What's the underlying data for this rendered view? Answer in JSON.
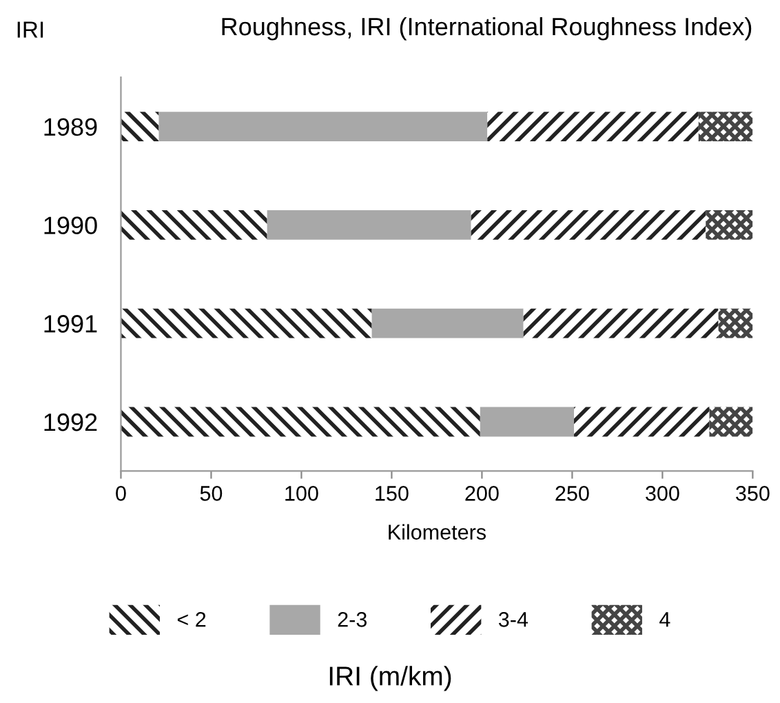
{
  "chart_data": {
    "type": "bar",
    "orientation": "horizontal",
    "stacked": true,
    "title": "Roughness, IRI (International Roughness Index)",
    "ylabel": "IRI",
    "xlabel": "Kilometers",
    "legend_title": "IRI (m/km)",
    "categories": [
      "1989",
      "1990",
      "1991",
      "1992"
    ],
    "series": [
      {
        "name": "< 2",
        "color": "#222222",
        "values": [
          21,
          81,
          139,
          199
        ]
      },
      {
        "name": "2-3",
        "color": "#a8a8a8",
        "values": [
          182,
          113,
          84,
          52
        ]
      },
      {
        "name": "3-4",
        "color": "#222222",
        "values": [
          117,
          130,
          108,
          75
        ]
      },
      {
        "name": "4",
        "color": "#444444",
        "values": [
          30,
          26,
          19,
          24
        ]
      }
    ],
    "xlim": [
      0,
      350
    ],
    "xticks": [
      0,
      50,
      100,
      150,
      200,
      250,
      300,
      350
    ],
    "grid": false,
    "legend": "bottom"
  }
}
